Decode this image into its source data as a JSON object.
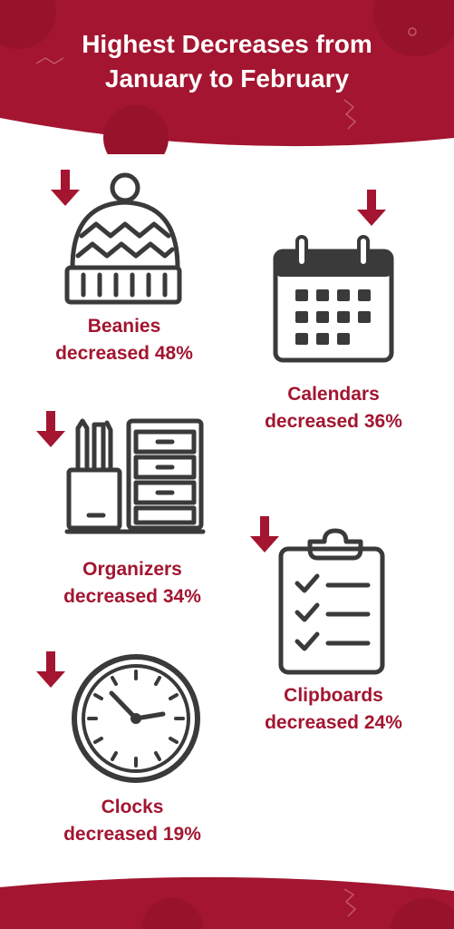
{
  "title": {
    "line1": "Highest Decreases from",
    "line2": "January to February"
  },
  "colors": {
    "brand": "#a31530",
    "icon": "#3a3a3a",
    "background": "#ffffff"
  },
  "items": [
    {
      "name": "Beanies",
      "line1": "Beanies",
      "line2": "decreased 48%",
      "percent": 48,
      "icon": "beanie-icon"
    },
    {
      "name": "Calendars",
      "line1": "Calendars",
      "line2": "decreased 36%",
      "percent": 36,
      "icon": "calendar-icon"
    },
    {
      "name": "Organizers",
      "line1": "Organizers",
      "line2": "decreased 34%",
      "percent": 34,
      "icon": "organizer-icon"
    },
    {
      "name": "Clipboards",
      "line1": "Clipboards",
      "line2": "decreased 24%",
      "percent": 24,
      "icon": "clipboard-icon"
    },
    {
      "name": "Clocks",
      "line1": "Clocks",
      "line2": "decreased 19%",
      "percent": 19,
      "icon": "clock-icon"
    }
  ]
}
